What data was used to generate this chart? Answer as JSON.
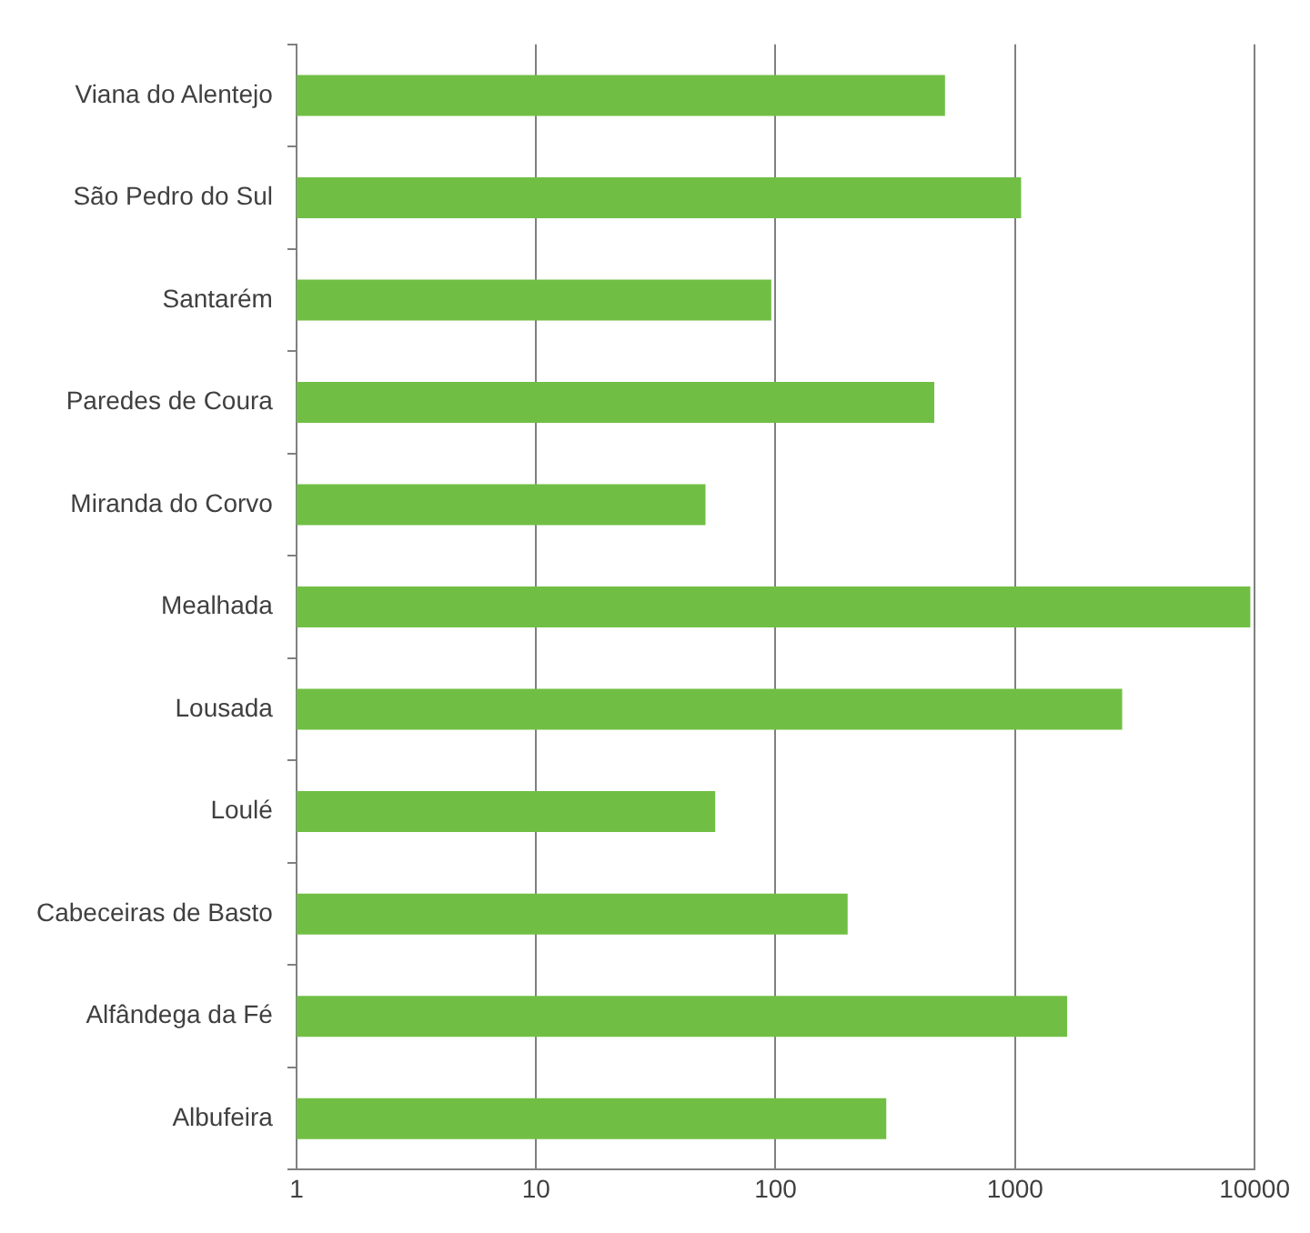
{
  "chart_data": {
    "type": "bar",
    "orientation": "horizontal",
    "log": "x",
    "grid": "x",
    "legend": false,
    "categories": [
      "Viana do Alentejo",
      "São Pedro do Sul",
      "Santarém",
      "Paredes de Coura",
      "Miranda do Corvo",
      "Mealhada",
      "Lousada",
      "Loulé",
      "Cabeceiras de Basto",
      "Alfândega da Fé",
      "Albufeira"
    ],
    "values": [
      510,
      1060,
      96,
      460,
      51,
      9600,
      2800,
      56,
      200,
      1650,
      290
    ],
    "color": "#70bf44",
    "xlim": [
      1,
      10000
    ],
    "xticks": [
      1,
      10,
      100,
      1000,
      10000
    ]
  }
}
